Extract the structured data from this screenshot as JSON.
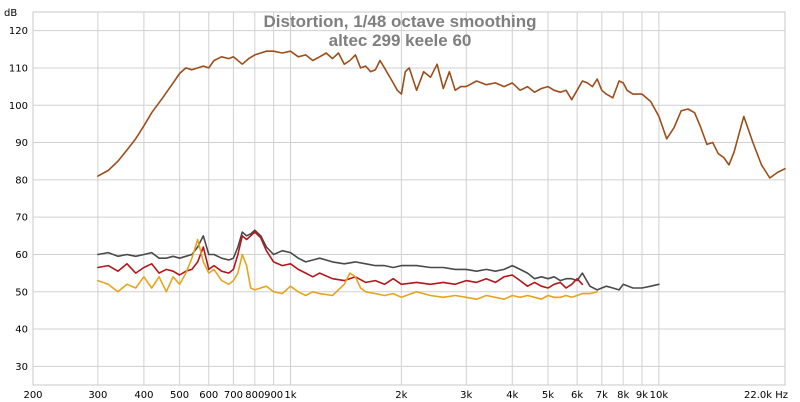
{
  "chart_data": {
    "type": "line",
    "title": "Distortion, 1/48 octave smoothing",
    "subtitle": "altec 299 keele 60",
    "ylabel": "dB",
    "xlabel": "Hz",
    "x_scale": "log",
    "xlim": [
      200,
      22000
    ],
    "ylim": [
      25,
      125
    ],
    "grid": true,
    "x_ticks": [
      {
        "v": 200,
        "label": "200"
      },
      {
        "v": 300,
        "label": "300"
      },
      {
        "v": 400,
        "label": "400"
      },
      {
        "v": 500,
        "label": "500"
      },
      {
        "v": 600,
        "label": "600"
      },
      {
        "v": 700,
        "label": "700"
      },
      {
        "v": 800,
        "label": "800"
      },
      {
        "v": 900,
        "label": "900"
      },
      {
        "v": 1000,
        "label": "1k"
      },
      {
        "v": 2000,
        "label": "2k"
      },
      {
        "v": 3000,
        "label": "3k"
      },
      {
        "v": 4000,
        "label": "4k"
      },
      {
        "v": 5000,
        "label": "5k"
      },
      {
        "v": 6000,
        "label": "6k"
      },
      {
        "v": 7000,
        "label": "7k"
      },
      {
        "v": 8000,
        "label": "8k"
      },
      {
        "v": 9000,
        "label": "9k"
      },
      {
        "v": 10000,
        "label": "10k"
      },
      {
        "v": 22000,
        "label": "22.0k Hz"
      }
    ],
    "y_ticks": [
      30,
      40,
      50,
      60,
      70,
      80,
      90,
      100,
      110,
      120
    ],
    "series": [
      {
        "color": "#9c4e1a",
        "x": [
          300,
          320,
          340,
          360,
          380,
          400,
          420,
          450,
          480,
          500,
          520,
          540,
          560,
          580,
          600,
          620,
          650,
          680,
          700,
          720,
          740,
          770,
          800,
          830,
          860,
          900,
          950,
          1000,
          1050,
          1100,
          1150,
          1200,
          1250,
          1300,
          1350,
          1400,
          1450,
          1500,
          1550,
          1600,
          1650,
          1700,
          1750,
          1800,
          1900,
          1950,
          2000,
          2050,
          2100,
          2200,
          2300,
          2400,
          2500,
          2600,
          2700,
          2800,
          2900,
          3000,
          3200,
          3400,
          3600,
          3800,
          4000,
          4200,
          4400,
          4600,
          4800,
          5000,
          5200,
          5400,
          5600,
          5800,
          6000,
          6200,
          6400,
          6600,
          6800,
          7000,
          7200,
          7500,
          7800,
          8000,
          8200,
          8500,
          9000,
          9500,
          10000,
          10500,
          11000,
          11500,
          12000,
          12500,
          13000,
          13500,
          14000,
          14500,
          15000,
          15500,
          16000,
          17000,
          18000,
          19000,
          20000,
          21000,
          22000
        ],
        "values": [
          81,
          82.5,
          85,
          88,
          91,
          94.5,
          98,
          102,
          106,
          108.5,
          110,
          109.5,
          110,
          110.5,
          110,
          112,
          113,
          112.5,
          113,
          112,
          111,
          112.5,
          113.5,
          114,
          114.5,
          114.5,
          114,
          114.5,
          113,
          113.5,
          112,
          113,
          114,
          112.5,
          114,
          111,
          112,
          113.5,
          110,
          110.5,
          109,
          109.5,
          112,
          110,
          106,
          104,
          103,
          109,
          110,
          104,
          109,
          107.5,
          111,
          104.5,
          109,
          104,
          105,
          105,
          106.5,
          105.5,
          106,
          105,
          106,
          104,
          105,
          103.5,
          104.5,
          105,
          104,
          103.5,
          104,
          101.5,
          104,
          106.5,
          106,
          105,
          107,
          104,
          103,
          102,
          106.5,
          106,
          104,
          103,
          103,
          101,
          97,
          91,
          94,
          98.5,
          99,
          98,
          94,
          89.5,
          90,
          87,
          86,
          84,
          87.5,
          97,
          90,
          84,
          80.5,
          82,
          83
        ]
      },
      {
        "color": "#4a4a4a",
        "x": [
          300,
          320,
          340,
          360,
          380,
          400,
          420,
          440,
          460,
          480,
          500,
          520,
          540,
          560,
          580,
          600,
          620,
          650,
          680,
          700,
          720,
          740,
          760,
          780,
          800,
          830,
          860,
          900,
          950,
          1000,
          1050,
          1100,
          1150,
          1200,
          1300,
          1400,
          1500,
          1600,
          1700,
          1800,
          1900,
          2000,
          2200,
          2400,
          2600,
          2800,
          3000,
          3200,
          3400,
          3600,
          3800,
          3900,
          4000,
          4200,
          4400,
          4600,
          4800,
          5000,
          5200,
          5400,
          5600,
          5800,
          6000,
          6200,
          6500,
          6800,
          7000,
          7200,
          7500,
          7800,
          8000,
          8500,
          9000,
          9500,
          10000
        ],
        "values": [
          60,
          60.5,
          59.5,
          60,
          59.5,
          60,
          60.5,
          59,
          59,
          59.5,
          59,
          59.5,
          60,
          62,
          65,
          60,
          60,
          59,
          58.5,
          59,
          62,
          66,
          65,
          65.5,
          66.5,
          65,
          62,
          60,
          61,
          60.5,
          59,
          58,
          58.5,
          59,
          58,
          57.5,
          58,
          57.5,
          57,
          57,
          56.5,
          57,
          57,
          56.5,
          56.5,
          56,
          56,
          55.5,
          56,
          55.5,
          56,
          56.5,
          57,
          56,
          55,
          53.5,
          54,
          53.5,
          54,
          53,
          53.5,
          53.5,
          53,
          55,
          51.5,
          50.5,
          51,
          51.5,
          51,
          50.5,
          52,
          51,
          51,
          51.5,
          52
        ]
      },
      {
        "color": "#b5161c",
        "x": [
          300,
          320,
          340,
          360,
          380,
          400,
          420,
          440,
          460,
          480,
          500,
          520,
          540,
          560,
          580,
          600,
          620,
          650,
          680,
          700,
          720,
          740,
          760,
          780,
          800,
          830,
          860,
          900,
          950,
          1000,
          1050,
          1100,
          1150,
          1200,
          1300,
          1400,
          1500,
          1600,
          1700,
          1800,
          1900,
          2000,
          2200,
          2400,
          2600,
          2800,
          3000,
          3200,
          3400,
          3600,
          3800,
          4000,
          4200,
          4400,
          4600,
          4800,
          5000,
          5200,
          5400,
          5600,
          5800,
          6000,
          6200
        ],
        "values": [
          56.5,
          57,
          55.5,
          57.5,
          55,
          56.5,
          57.5,
          55,
          56,
          55.5,
          54.5,
          55.5,
          56,
          58,
          62,
          56,
          57,
          55.5,
          55,
          56,
          60,
          65,
          64,
          65,
          66,
          64.5,
          61,
          58,
          57,
          57.5,
          56,
          55,
          54,
          55,
          53.5,
          53,
          54,
          52.5,
          53,
          52,
          53.5,
          52,
          52.5,
          52,
          52.5,
          52,
          53,
          52.5,
          53.5,
          52.5,
          54,
          54.5,
          53,
          51.5,
          52.5,
          51.5,
          51,
          52,
          52.5,
          51,
          52,
          53.5,
          52
        ]
      },
      {
        "color": "#e6a51e",
        "x": [
          300,
          320,
          340,
          360,
          380,
          400,
          420,
          440,
          460,
          480,
          500,
          520,
          540,
          560,
          580,
          600,
          620,
          650,
          680,
          700,
          720,
          740,
          760,
          780,
          800,
          830,
          860,
          900,
          950,
          1000,
          1050,
          1100,
          1150,
          1200,
          1300,
          1400,
          1450,
          1500,
          1550,
          1600,
          1700,
          1800,
          1900,
          2000,
          2200,
          2400,
          2600,
          2800,
          3000,
          3200,
          3400,
          3600,
          3800,
          4000,
          4200,
          4400,
          4600,
          4800,
          5000,
          5200,
          5400,
          5600,
          5800,
          6000,
          6200,
          6500,
          6800
        ],
        "values": [
          53,
          52,
          50,
          52,
          51,
          54,
          51,
          54,
          50,
          54,
          52,
          55,
          59,
          64,
          58,
          55,
          56,
          53,
          52,
          53,
          55,
          60,
          57,
          51,
          50.5,
          51,
          51.5,
          50,
          49.5,
          51.5,
          50,
          49,
          50,
          49.5,
          49,
          52,
          55,
          54,
          51,
          50,
          49.5,
          49,
          49.5,
          48.5,
          50,
          49,
          48.5,
          49,
          48.5,
          48,
          49,
          48.5,
          48,
          49,
          48.5,
          49,
          48.5,
          48,
          49,
          48.5,
          48.5,
          49,
          48.5,
          49,
          49.5,
          49.5,
          50
        ]
      }
    ]
  }
}
